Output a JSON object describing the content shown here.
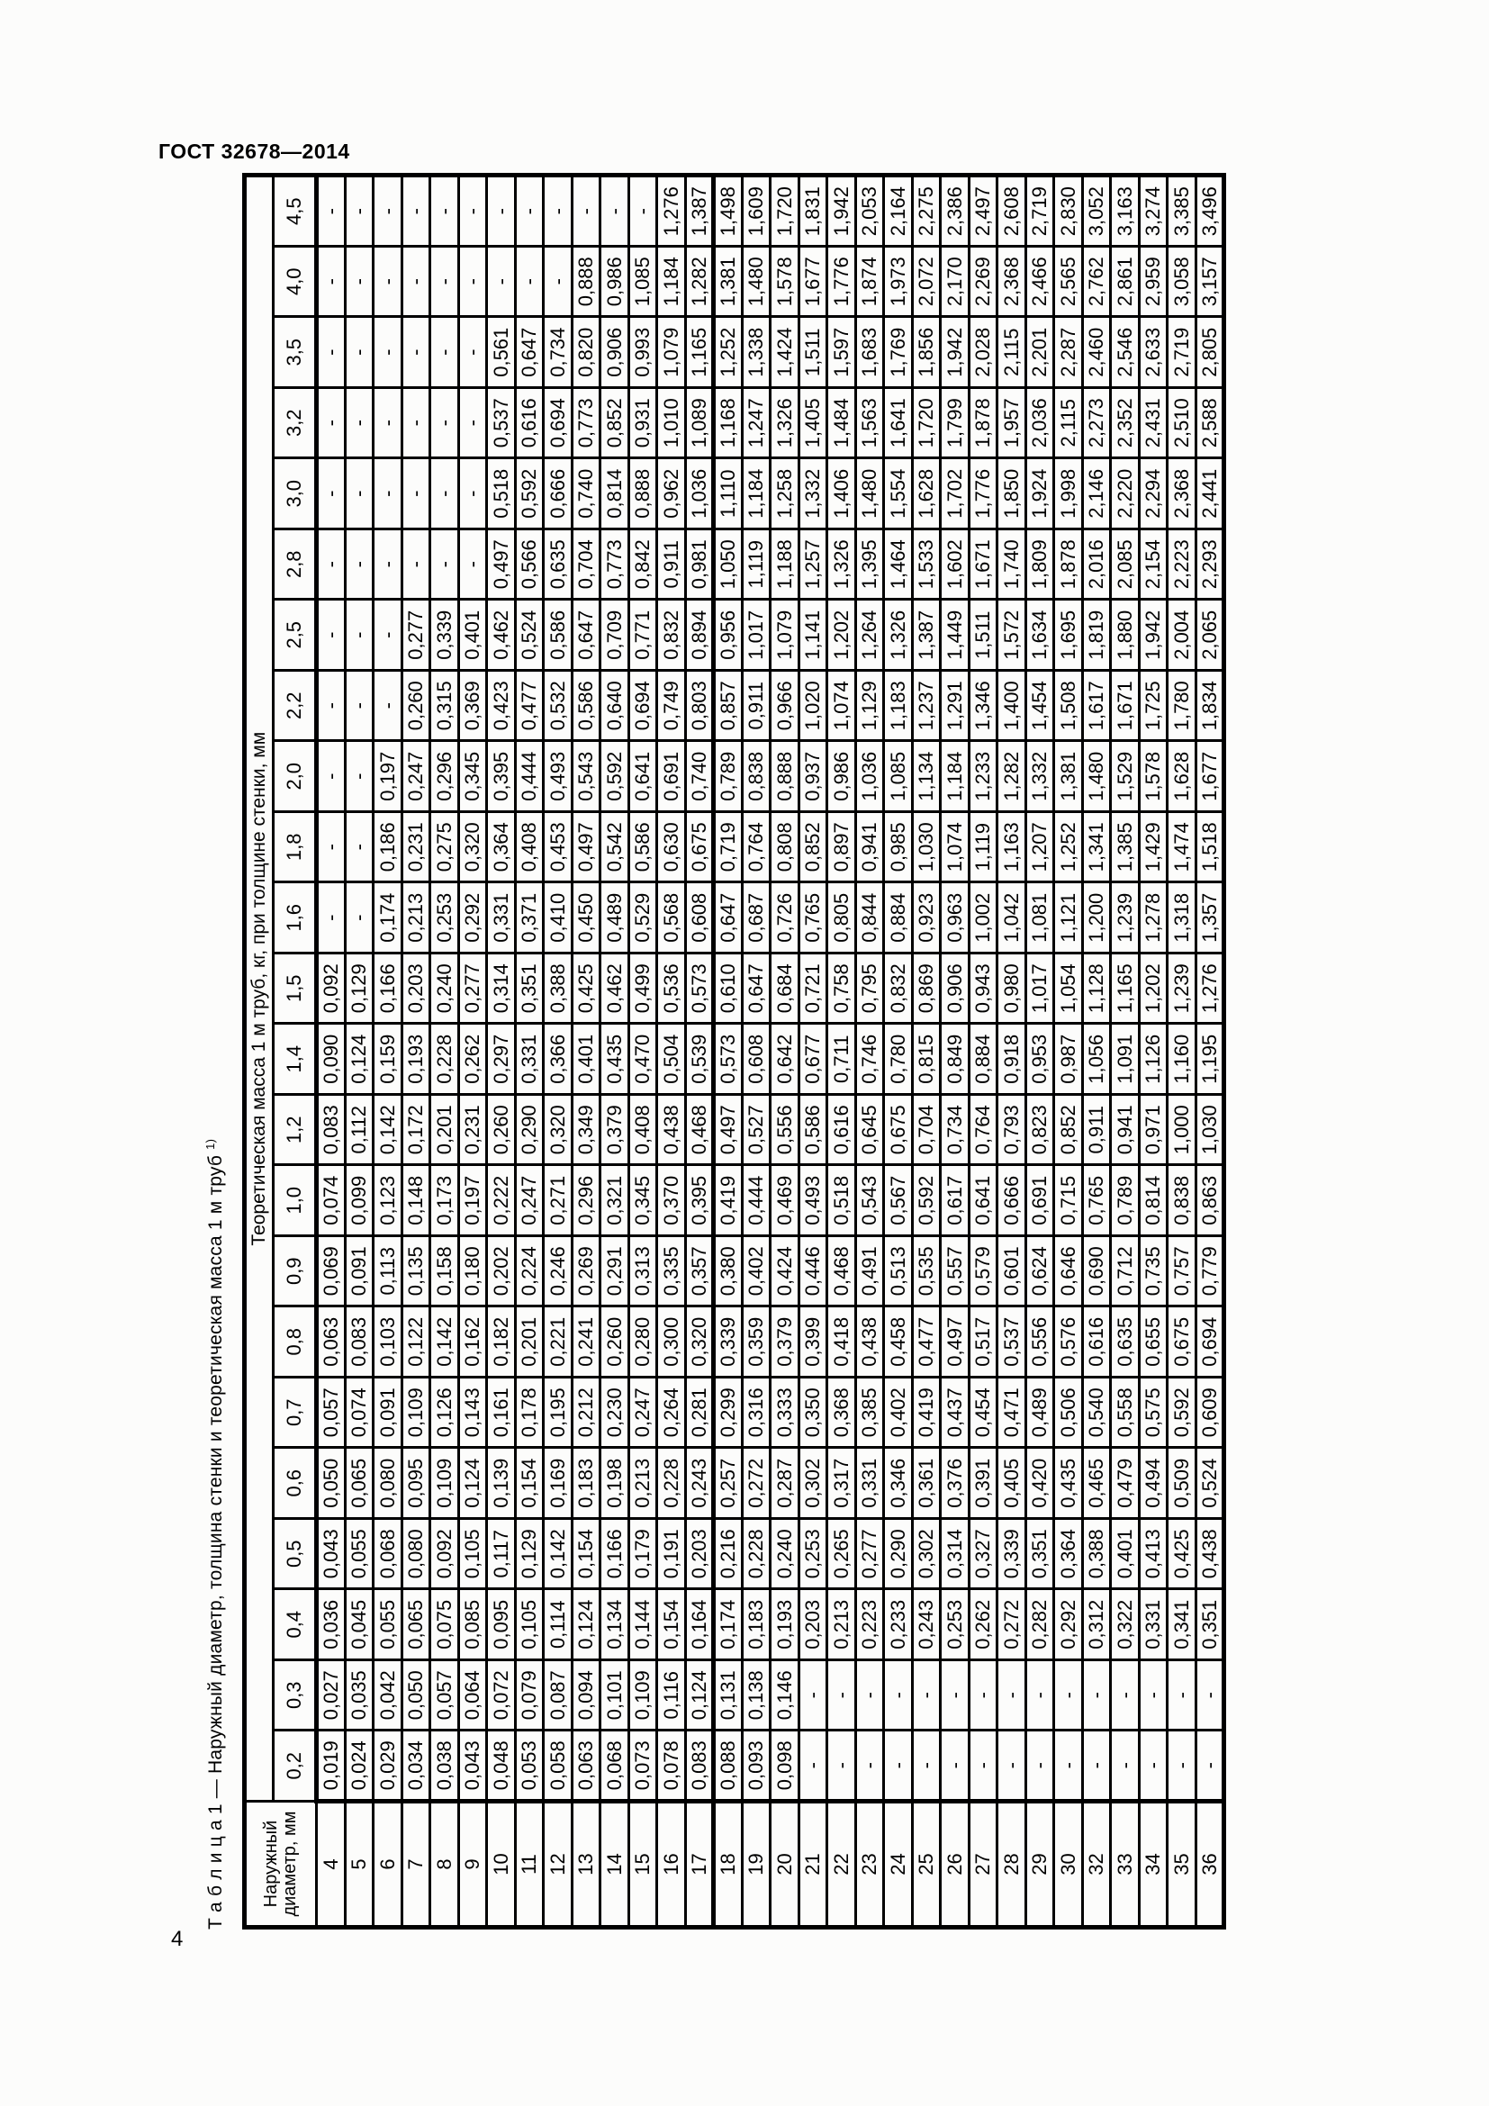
{
  "page": {
    "doc_header": "ГОСТ 32678—2014",
    "page_number": "4"
  },
  "table": {
    "caption": "Т а б л и ц а 1 — Наружный диаметр, толщина стенки и теоретическая масса 1 м труб",
    "caption_footnote_marker": "1)",
    "diameter_header": "Наружный диаметр, мм",
    "mass_header": "Теоретическая масса 1 м труб, кг, при толщине стенки, мм",
    "thickness_columns": [
      "0,2",
      "0,3",
      "0,4",
      "0,5",
      "0,6",
      "0,7",
      "0,8",
      "0,9",
      "1,0",
      "1,2",
      "1,4",
      "1,5",
      "1,6",
      "1,8",
      "2,0",
      "2,2",
      "2,5",
      "2,8",
      "3,0",
      "3,2",
      "3,5",
      "4,0",
      "4,5"
    ],
    "rows": [
      {
        "diameter": "4",
        "values": [
          "0,019",
          "0,027",
          "0,036",
          "0,043",
          "0,050",
          "0,057",
          "0,063",
          "0,069",
          "0,074",
          "0,083",
          "0,090",
          "0,092",
          "-",
          "-",
          "-",
          "-",
          "-",
          "-",
          "-",
          "-",
          "-",
          "-",
          "-"
        ]
      },
      {
        "diameter": "5",
        "values": [
          "0,024",
          "0,035",
          "0,045",
          "0,055",
          "0,065",
          "0,074",
          "0,083",
          "0,091",
          "0,099",
          "0,112",
          "0,124",
          "0,129",
          "-",
          "-",
          "-",
          "-",
          "-",
          "-",
          "-",
          "-",
          "-",
          "-",
          "-"
        ]
      },
      {
        "diameter": "6",
        "values": [
          "0,029",
          "0,042",
          "0,055",
          "0,068",
          "0,080",
          "0,091",
          "0,103",
          "0,113",
          "0,123",
          "0,142",
          "0,159",
          "0,166",
          "0,174",
          "0,186",
          "0,197",
          "-",
          "-",
          "-",
          "-",
          "-",
          "-",
          "-",
          "-"
        ]
      },
      {
        "diameter": "7",
        "values": [
          "0,034",
          "0,050",
          "0,065",
          "0,080",
          "0,095",
          "0,109",
          "0,122",
          "0,135",
          "0,148",
          "0,172",
          "0,193",
          "0,203",
          "0,213",
          "0,231",
          "0,247",
          "0,260",
          "0,277",
          "-",
          "-",
          "-",
          "-",
          "-",
          "-"
        ]
      },
      {
        "diameter": "8",
        "values": [
          "0,038",
          "0,057",
          "0,075",
          "0,092",
          "0,109",
          "0,126",
          "0,142",
          "0,158",
          "0,173",
          "0,201",
          "0,228",
          "0,240",
          "0,253",
          "0,275",
          "0,296",
          "0,315",
          "0,339",
          "-",
          "-",
          "-",
          "-",
          "-",
          "-"
        ]
      },
      {
        "diameter": "9",
        "values": [
          "0,043",
          "0,064",
          "0,085",
          "0,105",
          "0,124",
          "0,143",
          "0,162",
          "0,180",
          "0,197",
          "0,231",
          "0,262",
          "0,277",
          "0,292",
          "0,320",
          "0,345",
          "0,369",
          "0,401",
          "-",
          "-",
          "-",
          "-",
          "-",
          "-"
        ]
      },
      {
        "diameter": "10",
        "values": [
          "0,048",
          "0,072",
          "0,095",
          "0,117",
          "0,139",
          "0,161",
          "0,182",
          "0,202",
          "0,222",
          "0,260",
          "0,297",
          "0,314",
          "0,331",
          "0,364",
          "0,395",
          "0,423",
          "0,462",
          "0,497",
          "0,518",
          "0,537",
          "0,561",
          "-",
          "-"
        ]
      },
      {
        "diameter": "11",
        "values": [
          "0,053",
          "0,079",
          "0,105",
          "0,129",
          "0,154",
          "0,178",
          "0,201",
          "0,224",
          "0,247",
          "0,290",
          "0,331",
          "0,351",
          "0,371",
          "0,408",
          "0,444",
          "0,477",
          "0,524",
          "0,566",
          "0,592",
          "0,616",
          "0,647",
          "-",
          "-"
        ]
      },
      {
        "diameter": "12",
        "values": [
          "0,058",
          "0,087",
          "0,114",
          "0,142",
          "0,169",
          "0,195",
          "0,221",
          "0,246",
          "0,271",
          "0,320",
          "0,366",
          "0,388",
          "0,410",
          "0,453",
          "0,493",
          "0,532",
          "0,586",
          "0,635",
          "0,666",
          "0,694",
          "0,734",
          "-",
          "-"
        ]
      },
      {
        "diameter": "13",
        "values": [
          "0,063",
          "0,094",
          "0,124",
          "0,154",
          "0,183",
          "0,212",
          "0,241",
          "0,269",
          "0,296",
          "0,349",
          "0,401",
          "0,425",
          "0,450",
          "0,497",
          "0,543",
          "0,586",
          "0,647",
          "0,704",
          "0,740",
          "0,773",
          "0,820",
          "0,888",
          "-"
        ]
      },
      {
        "diameter": "14",
        "values": [
          "0,068",
          "0,101",
          "0,134",
          "0,166",
          "0,198",
          "0,230",
          "0,260",
          "0,291",
          "0,321",
          "0,379",
          "0,435",
          "0,462",
          "0,489",
          "0,542",
          "0,592",
          "0,640",
          "0,709",
          "0,773",
          "0,814",
          "0,852",
          "0,906",
          "0,986",
          "-"
        ]
      },
      {
        "diameter": "15",
        "values": [
          "0,073",
          "0,109",
          "0,144",
          "0,179",
          "0,213",
          "0,247",
          "0,280",
          "0,313",
          "0,345",
          "0,408",
          "0,470",
          "0,499",
          "0,529",
          "0,586",
          "0,641",
          "0,694",
          "0,771",
          "0,842",
          "0,888",
          "0,931",
          "0,993",
          "1,085",
          "-"
        ]
      },
      {
        "diameter": "16",
        "values": [
          "0,078",
          "0,116",
          "0,154",
          "0,191",
          "0,228",
          "0,264",
          "0,300",
          "0,335",
          "0,370",
          "0,438",
          "0,504",
          "0,536",
          "0,568",
          "0,630",
          "0,691",
          "0,749",
          "0,832",
          "0,911",
          "0,962",
          "1,010",
          "1,079",
          "1,184",
          "1,276"
        ]
      },
      {
        "diameter": "17",
        "values": [
          "0,083",
          "0,124",
          "0,164",
          "0,203",
          "0,243",
          "0,281",
          "0,320",
          "0,357",
          "0,395",
          "0,468",
          "0,539",
          "0,573",
          "0,608",
          "0,675",
          "0,740",
          "0,803",
          "0,894",
          "0,981",
          "1,036",
          "1,089",
          "1,165",
          "1,282",
          "1,387"
        ]
      },
      {
        "diameter": "18",
        "values": [
          "0,088",
          "0,131",
          "0,174",
          "0,216",
          "0,257",
          "0,299",
          "0,339",
          "0,380",
          "0,419",
          "0,497",
          "0,573",
          "0,610",
          "0,647",
          "0,719",
          "0,789",
          "0,857",
          "0,956",
          "1,050",
          "1,110",
          "1,168",
          "1,252",
          "1,381",
          "1,498"
        ]
      },
      {
        "diameter": "19",
        "values": [
          "0,093",
          "0,138",
          "0,183",
          "0,228",
          "0,272",
          "0,316",
          "0,359",
          "0,402",
          "0,444",
          "0,527",
          "0,608",
          "0,647",
          "0,687",
          "0,764",
          "0,838",
          "0,911",
          "1,017",
          "1,119",
          "1,184",
          "1,247",
          "1,338",
          "1,480",
          "1,609"
        ]
      },
      {
        "diameter": "20",
        "values": [
          "0,098",
          "0,146",
          "0,193",
          "0,240",
          "0,287",
          "0,333",
          "0,379",
          "0,424",
          "0,469",
          "0,556",
          "0,642",
          "0,684",
          "0,726",
          "0,808",
          "0,888",
          "0,966",
          "1,079",
          "1,188",
          "1,258",
          "1,326",
          "1,424",
          "1,578",
          "1,720"
        ]
      },
      {
        "diameter": "21",
        "values": [
          "-",
          "-",
          "0,203",
          "0,253",
          "0,302",
          "0,350",
          "0,399",
          "0,446",
          "0,493",
          "0,586",
          "0,677",
          "0,721",
          "0,765",
          "0,852",
          "0,937",
          "1,020",
          "1,141",
          "1,257",
          "1,332",
          "1,405",
          "1,511",
          "1,677",
          "1,831"
        ]
      },
      {
        "diameter": "22",
        "values": [
          "-",
          "-",
          "0,213",
          "0,265",
          "0,317",
          "0,368",
          "0,418",
          "0,468",
          "0,518",
          "0,616",
          "0,711",
          "0,758",
          "0,805",
          "0,897",
          "0,986",
          "1,074",
          "1,202",
          "1,326",
          "1,406",
          "1,484",
          "1,597",
          "1,776",
          "1,942"
        ]
      },
      {
        "diameter": "23",
        "values": [
          "-",
          "-",
          "0,223",
          "0,277",
          "0,331",
          "0,385",
          "0,438",
          "0,491",
          "0,543",
          "0,645",
          "0,746",
          "0,795",
          "0,844",
          "0,941",
          "1,036",
          "1,129",
          "1,264",
          "1,395",
          "1,480",
          "1,563",
          "1,683",
          "1,874",
          "2,053"
        ]
      },
      {
        "diameter": "24",
        "values": [
          "-",
          "-",
          "0,233",
          "0,290",
          "0,346",
          "0,402",
          "0,458",
          "0,513",
          "0,567",
          "0,675",
          "0,780",
          "0,832",
          "0,884",
          "0,985",
          "1,085",
          "1,183",
          "1,326",
          "1,464",
          "1,554",
          "1,641",
          "1,769",
          "1,973",
          "2,164"
        ]
      },
      {
        "diameter": "25",
        "values": [
          "-",
          "-",
          "0,243",
          "0,302",
          "0,361",
          "0,419",
          "0,477",
          "0,535",
          "0,592",
          "0,704",
          "0,815",
          "0,869",
          "0,923",
          "1,030",
          "1,134",
          "1,237",
          "1,387",
          "1,533",
          "1,628",
          "1,720",
          "1,856",
          "2,072",
          "2,275"
        ]
      },
      {
        "diameter": "26",
        "values": [
          "-",
          "-",
          "0,253",
          "0,314",
          "0,376",
          "0,437",
          "0,497",
          "0,557",
          "0,617",
          "0,734",
          "0,849",
          "0,906",
          "0,963",
          "1,074",
          "1,184",
          "1,291",
          "1,449",
          "1,602",
          "1,702",
          "1,799",
          "1,942",
          "2,170",
          "2,386"
        ]
      },
      {
        "diameter": "27",
        "values": [
          "-",
          "-",
          "0,262",
          "0,327",
          "0,391",
          "0,454",
          "0,517",
          "0,579",
          "0,641",
          "0,764",
          "0,884",
          "0,943",
          "1,002",
          "1,119",
          "1,233",
          "1,346",
          "1,511",
          "1,671",
          "1,776",
          "1,878",
          "2,028",
          "2,269",
          "2,497"
        ]
      },
      {
        "diameter": "28",
        "values": [
          "-",
          "-",
          "0,272",
          "0,339",
          "0,405",
          "0,471",
          "0,537",
          "0,601",
          "0,666",
          "0,793",
          "0,918",
          "0,980",
          "1,042",
          "1,163",
          "1,282",
          "1,400",
          "1,572",
          "1,740",
          "1,850",
          "1,957",
          "2,115",
          "2,368",
          "2,608"
        ]
      },
      {
        "diameter": "29",
        "values": [
          "-",
          "-",
          "0,282",
          "0,351",
          "0,420",
          "0,489",
          "0,556",
          "0,624",
          "0,691",
          "0,823",
          "0,953",
          "1,017",
          "1,081",
          "1,207",
          "1,332",
          "1,454",
          "1,634",
          "1,809",
          "1,924",
          "2,036",
          "2,201",
          "2,466",
          "2,719"
        ]
      },
      {
        "diameter": "30",
        "values": [
          "-",
          "-",
          "0,292",
          "0,364",
          "0,435",
          "0,506",
          "0,576",
          "0,646",
          "0,715",
          "0,852",
          "0,987",
          "1,054",
          "1,121",
          "1,252",
          "1,381",
          "1,508",
          "1,695",
          "1,878",
          "1,998",
          "2,115",
          "2,287",
          "2,565",
          "2,830"
        ]
      },
      {
        "diameter": "32",
        "values": [
          "-",
          "-",
          "0,312",
          "0,388",
          "0,465",
          "0,540",
          "0,616",
          "0,690",
          "0,765",
          "0,911",
          "1,056",
          "1,128",
          "1,200",
          "1,341",
          "1,480",
          "1,617",
          "1,819",
          "2,016",
          "2,146",
          "2,273",
          "2,460",
          "2,762",
          "3,052"
        ]
      },
      {
        "diameter": "33",
        "values": [
          "-",
          "-",
          "0,322",
          "0,401",
          "0,479",
          "0,558",
          "0,635",
          "0,712",
          "0,789",
          "0,941",
          "1,091",
          "1,165",
          "1,239",
          "1,385",
          "1,529",
          "1,671",
          "1,880",
          "2,085",
          "2,220",
          "2,352",
          "2,546",
          "2,861",
          "3,163"
        ]
      },
      {
        "diameter": "34",
        "values": [
          "-",
          "-",
          "0,331",
          "0,413",
          "0,494",
          "0,575",
          "0,655",
          "0,735",
          "0,814",
          "0,971",
          "1,126",
          "1,202",
          "1,278",
          "1,429",
          "1,578",
          "1,725",
          "1,942",
          "2,154",
          "2,294",
          "2,431",
          "2,633",
          "2,959",
          "3,274"
        ]
      },
      {
        "diameter": "35",
        "values": [
          "-",
          "-",
          "0,341",
          "0,425",
          "0,509",
          "0,592",
          "0,675",
          "0,757",
          "0,838",
          "1,000",
          "1,160",
          "1,239",
          "1,318",
          "1,474",
          "1,628",
          "1,780",
          "2,004",
          "2,223",
          "2,368",
          "2,510",
          "2,719",
          "3,058",
          "3,385"
        ]
      },
      {
        "diameter": "36",
        "values": [
          "-",
          "-",
          "0,351",
          "0,438",
          "0,524",
          "0,609",
          "0,694",
          "0,779",
          "0,863",
          "1,030",
          "1,195",
          "1,276",
          "1,357",
          "1,518",
          "1,677",
          "1,834",
          "2,065",
          "2,293",
          "2,441",
          "2,588",
          "2,805",
          "3,157",
          "3,496"
        ]
      }
    ]
  }
}
